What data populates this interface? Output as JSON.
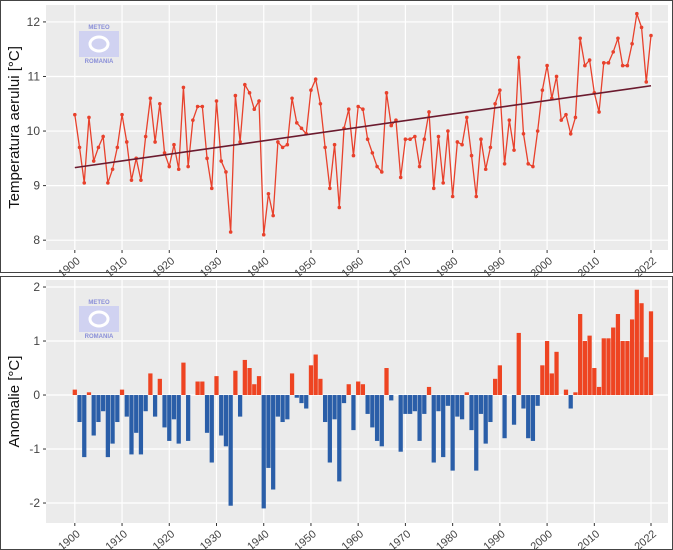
{
  "watermark": [
    "METEO",
    "ROMANIA"
  ],
  "chart_data": [
    {
      "type": "line",
      "ylabel": "Temperatura aerului [°C]",
      "x": [
        1900,
        1901,
        1902,
        1903,
        1904,
        1905,
        1906,
        1907,
        1908,
        1909,
        1910,
        1911,
        1912,
        1913,
        1914,
        1915,
        1916,
        1917,
        1918,
        1919,
        1920,
        1921,
        1922,
        1923,
        1924,
        1925,
        1926,
        1927,
        1928,
        1929,
        1930,
        1931,
        1932,
        1933,
        1934,
        1935,
        1936,
        1937,
        1938,
        1939,
        1940,
        1941,
        1942,
        1943,
        1944,
        1945,
        1946,
        1947,
        1948,
        1949,
        1950,
        1951,
        1952,
        1953,
        1954,
        1955,
        1956,
        1957,
        1958,
        1959,
        1960,
        1961,
        1962,
        1963,
        1964,
        1965,
        1966,
        1967,
        1968,
        1969,
        1970,
        1971,
        1972,
        1973,
        1974,
        1975,
        1976,
        1977,
        1978,
        1979,
        1980,
        1981,
        1982,
        1983,
        1984,
        1985,
        1986,
        1987,
        1988,
        1989,
        1990,
        1991,
        1992,
        1993,
        1994,
        1995,
        1996,
        1997,
        1998,
        1999,
        2000,
        2001,
        2002,
        2003,
        2004,
        2005,
        2006,
        2007,
        2008,
        2009,
        2010,
        2011,
        2012,
        2013,
        2014,
        2015,
        2016,
        2017,
        2018,
        2019,
        2020,
        2021,
        2022
      ],
      "values": [
        10.3,
        9.7,
        9.05,
        10.25,
        9.45,
        9.7,
        9.9,
        9.05,
        9.3,
        9.7,
        10.3,
        9.8,
        9.1,
        9.5,
        9.1,
        9.9,
        10.6,
        9.8,
        10.5,
        9.6,
        9.35,
        9.75,
        9.3,
        10.8,
        9.35,
        10.2,
        10.45,
        10.45,
        9.5,
        8.95,
        10.55,
        9.45,
        9.25,
        8.15,
        10.65,
        9.8,
        10.85,
        10.7,
        10.4,
        10.55,
        8.1,
        8.85,
        8.45,
        9.8,
        9.7,
        9.75,
        10.6,
        10.15,
        10.05,
        9.95,
        10.75,
        10.95,
        10.5,
        9.7,
        8.95,
        9.75,
        8.6,
        10.05,
        10.4,
        9.55,
        10.45,
        10.4,
        9.85,
        9.6,
        9.35,
        9.25,
        10.7,
        10.1,
        10.2,
        9.15,
        9.85,
        9.85,
        9.9,
        9.35,
        9.85,
        10.35,
        8.95,
        9.9,
        9.05,
        10.0,
        8.8,
        9.8,
        9.75,
        10.25,
        9.55,
        8.8,
        9.85,
        9.3,
        9.7,
        10.5,
        10.75,
        9.4,
        10.2,
        9.65,
        11.35,
        9.95,
        9.4,
        9.35,
        10.0,
        10.75,
        11.2,
        10.6,
        11.0,
        10.2,
        10.3,
        9.95,
        10.25,
        11.7,
        11.2,
        11.3,
        10.7,
        10.35,
        11.25,
        11.25,
        11.45,
        11.7,
        11.2,
        11.2,
        11.6,
        12.15,
        11.9,
        10.9,
        11.75
      ],
      "color": "#e8412c",
      "trend": {
        "x": [
          1900,
          2022
        ],
        "values": [
          9.33,
          10.83
        ],
        "color": "#6b1a2e"
      },
      "xlim": [
        1893.9,
        2025.6
      ],
      "xticks": [
        1900,
        1910,
        1920,
        1930,
        1940,
        1950,
        1960,
        1970,
        1980,
        1990,
        2000,
        2010,
        2022
      ],
      "ylim": [
        7.82,
        12.31
      ],
      "yticks": [
        8,
        9,
        10,
        11,
        12
      ],
      "grid": true
    },
    {
      "type": "bar",
      "ylabel": "Anomalie [°C]",
      "x": [
        1900,
        1901,
        1902,
        1903,
        1904,
        1905,
        1906,
        1907,
        1908,
        1909,
        1910,
        1911,
        1912,
        1913,
        1914,
        1915,
        1916,
        1917,
        1918,
        1919,
        1920,
        1921,
        1922,
        1923,
        1924,
        1925,
        1926,
        1927,
        1928,
        1929,
        1930,
        1931,
        1932,
        1933,
        1934,
        1935,
        1936,
        1937,
        1938,
        1939,
        1940,
        1941,
        1942,
        1943,
        1944,
        1945,
        1946,
        1947,
        1948,
        1949,
        1950,
        1951,
        1952,
        1953,
        1954,
        1955,
        1956,
        1957,
        1958,
        1959,
        1960,
        1961,
        1962,
        1963,
        1964,
        1965,
        1966,
        1967,
        1968,
        1969,
        1970,
        1971,
        1972,
        1973,
        1974,
        1975,
        1976,
        1977,
        1978,
        1979,
        1980,
        1981,
        1982,
        1983,
        1984,
        1985,
        1986,
        1987,
        1988,
        1989,
        1990,
        1991,
        1992,
        1993,
        1994,
        1995,
        1996,
        1997,
        1998,
        1999,
        2000,
        2001,
        2002,
        2003,
        2004,
        2005,
        2006,
        2007,
        2008,
        2009,
        2010,
        2011,
        2012,
        2013,
        2014,
        2015,
        2016,
        2017,
        2018,
        2019,
        2020,
        2021,
        2022
      ],
      "values": [
        0.1,
        -0.5,
        -1.15,
        0.05,
        -0.75,
        -0.5,
        -0.3,
        -1.15,
        -0.9,
        -0.5,
        0.1,
        -0.4,
        -1.1,
        -0.7,
        -1.1,
        -0.3,
        0.4,
        -0.4,
        0.3,
        -0.6,
        -0.85,
        -0.45,
        -0.9,
        0.6,
        -0.85,
        0,
        0.25,
        0.25,
        -0.7,
        -1.25,
        0.35,
        -0.75,
        -0.95,
        -2.05,
        0.45,
        -0.4,
        0.65,
        0.5,
        0.2,
        0.35,
        -2.1,
        -1.35,
        -1.75,
        -0.4,
        -0.5,
        -0.45,
        0.4,
        -0.05,
        -0.15,
        -0.25,
        0.55,
        0.75,
        0.3,
        -0.5,
        -1.25,
        -0.45,
        -1.6,
        -0.15,
        0.2,
        -0.65,
        0.25,
        0.2,
        -0.35,
        -0.6,
        -0.85,
        -0.95,
        0.5,
        -0.1,
        0,
        -1.05,
        -0.35,
        -0.35,
        -0.3,
        -0.85,
        -0.35,
        0.15,
        -1.25,
        -0.3,
        -1.15,
        -0.2,
        -1.4,
        -0.4,
        -0.45,
        0.05,
        -0.65,
        -1.4,
        -0.35,
        -0.9,
        -0.5,
        0.3,
        0.55,
        -0.8,
        0,
        -0.55,
        1.15,
        -0.25,
        -0.8,
        -0.85,
        -0.2,
        0.55,
        1.0,
        0.4,
        0.8,
        0,
        0.1,
        -0.25,
        0.05,
        1.5,
        1.0,
        1.1,
        0.5,
        0.15,
        1.05,
        1.05,
        1.25,
        1.5,
        1.0,
        1.0,
        1.4,
        1.95,
        1.7,
        0.7,
        1.55
      ],
      "colors": {
        "positive": "#ee4422",
        "negative": "#2a5ea8"
      },
      "xlim": [
        1893.9,
        2025.6
      ],
      "xticks": [
        1900,
        1910,
        1920,
        1930,
        1940,
        1950,
        1960,
        1970,
        1980,
        1990,
        2000,
        2010,
        2022
      ],
      "ylim": [
        -2.37,
        2.13
      ],
      "yticks": [
        -2,
        -1,
        0,
        1,
        2
      ],
      "grid": true
    }
  ]
}
